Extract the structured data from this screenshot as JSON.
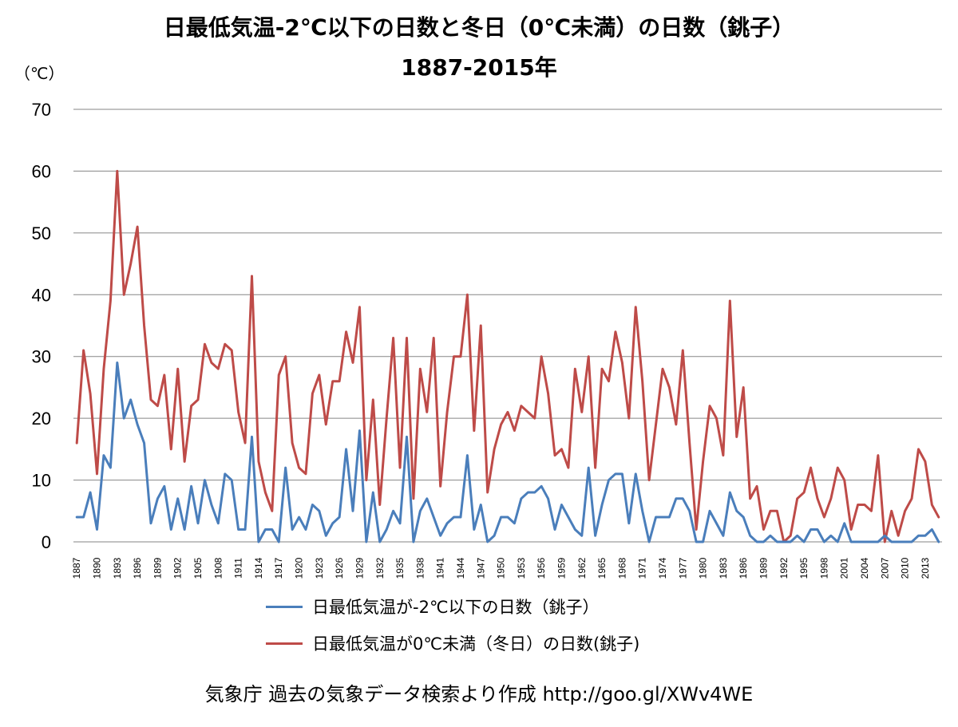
{
  "chart": {
    "title_line1": "日最低気温-2℃以下の日数と冬日（0℃未満）の日数（銚子）",
    "title_line2": "1887-2015年",
    "unit_label": "（℃）",
    "source": "気象庁 過去の気象データ検索より作成 http://goo.gl/XWv4WE"
  },
  "legend": [
    {
      "label": "日最低気温が-2℃以下の日数（銚子）",
      "color": "#4a7ebb"
    },
    {
      "label": "日最低気温が0℃未満（冬日）の日数(銚子)",
      "color": "#be4b48"
    }
  ],
  "chart_data": {
    "type": "line",
    "ylim": [
      0,
      70
    ],
    "yticks": [
      0,
      10,
      20,
      30,
      40,
      50,
      60,
      70
    ],
    "grid": true,
    "legend_position": "bottom",
    "x": [
      1887,
      1888,
      1889,
      1890,
      1891,
      1892,
      1893,
      1894,
      1895,
      1896,
      1897,
      1898,
      1899,
      1900,
      1901,
      1902,
      1903,
      1904,
      1905,
      1906,
      1907,
      1908,
      1909,
      1910,
      1911,
      1912,
      1913,
      1914,
      1915,
      1916,
      1917,
      1918,
      1919,
      1920,
      1921,
      1922,
      1923,
      1924,
      1925,
      1926,
      1927,
      1928,
      1929,
      1930,
      1931,
      1932,
      1933,
      1934,
      1935,
      1936,
      1937,
      1938,
      1939,
      1940,
      1941,
      1942,
      1943,
      1944,
      1945,
      1946,
      1947,
      1948,
      1949,
      1950,
      1951,
      1952,
      1953,
      1954,
      1955,
      1956,
      1957,
      1958,
      1959,
      1960,
      1961,
      1962,
      1963,
      1964,
      1965,
      1966,
      1967,
      1968,
      1969,
      1970,
      1971,
      1972,
      1973,
      1974,
      1975,
      1976,
      1977,
      1978,
      1979,
      1980,
      1981,
      1982,
      1983,
      1984,
      1985,
      1986,
      1987,
      1988,
      1989,
      1990,
      1991,
      1992,
      1993,
      1994,
      1995,
      1996,
      1997,
      1998,
      1999,
      2000,
      2001,
      2002,
      2003,
      2004,
      2005,
      2006,
      2007,
      2008,
      2009,
      2010,
      2011,
      2012,
      2013,
      2014,
      2015
    ],
    "xtick_labels": [
      1887,
      1890,
      1893,
      1896,
      1899,
      1902,
      1905,
      1908,
      1911,
      1914,
      1917,
      1920,
      1923,
      1926,
      1929,
      1932,
      1935,
      1938,
      1941,
      1944,
      1947,
      1950,
      1953,
      1956,
      1959,
      1962,
      1965,
      1968,
      1971,
      1974,
      1977,
      1980,
      1983,
      1986,
      1989,
      1992,
      1995,
      1998,
      2001,
      2004,
      2007,
      2010,
      2013
    ],
    "series": [
      {
        "name": "日最低気温が-2℃以下の日数（銚子）",
        "color": "#4a7ebb",
        "values": [
          4,
          4,
          8,
          2,
          14,
          12,
          29,
          20,
          23,
          19,
          16,
          3,
          7,
          9,
          2,
          7,
          2,
          9,
          3,
          10,
          6,
          3,
          11,
          10,
          2,
          2,
          17,
          0,
          2,
          2,
          0,
          12,
          2,
          4,
          2,
          6,
          5,
          1,
          3,
          4,
          15,
          5,
          18,
          0,
          8,
          0,
          2,
          5,
          3,
          17,
          0,
          5,
          7,
          4,
          1,
          3,
          4,
          4,
          14,
          2,
          6,
          0,
          1,
          4,
          4,
          3,
          7,
          8,
          8,
          9,
          7,
          2,
          6,
          4,
          2,
          1,
          12,
          1,
          6,
          10,
          11,
          11,
          3,
          11,
          5,
          0,
          4,
          4,
          4,
          7,
          7,
          5,
          0,
          0,
          5,
          3,
          1,
          8,
          5,
          4,
          1,
          0,
          0,
          1,
          0,
          0,
          0,
          1,
          0,
          2,
          2,
          0,
          1,
          0,
          3,
          0,
          0,
          0,
          0,
          0,
          1,
          0,
          0,
          0,
          0,
          1,
          1,
          2,
          0
        ]
      },
      {
        "name": "日最低気温が0℃未満（冬日）の日数(銚子)",
        "color": "#be4b48",
        "values": [
          16,
          31,
          24,
          11,
          28,
          39,
          60,
          40,
          45,
          51,
          35,
          23,
          22,
          27,
          15,
          28,
          13,
          22,
          23,
          32,
          29,
          28,
          32,
          31,
          21,
          16,
          43,
          13,
          8,
          5,
          27,
          30,
          16,
          12,
          11,
          24,
          27,
          19,
          26,
          26,
          34,
          29,
          38,
          10,
          23,
          6,
          20,
          33,
          12,
          33,
          7,
          28,
          21,
          33,
          9,
          21,
          30,
          30,
          40,
          18,
          35,
          8,
          15,
          19,
          21,
          18,
          22,
          21,
          20,
          30,
          24,
          14,
          15,
          12,
          28,
          21,
          30,
          12,
          28,
          26,
          34,
          29,
          20,
          38,
          26,
          10,
          19,
          28,
          25,
          19,
          31,
          16,
          2,
          13,
          22,
          20,
          14,
          39,
          17,
          25,
          7,
          9,
          2,
          5,
          5,
          0,
          1,
          7,
          8,
          12,
          7,
          4,
          7,
          12,
          10,
          2,
          6,
          6,
          5,
          14,
          0,
          5,
          1,
          5,
          7,
          15,
          13,
          6,
          4
        ]
      }
    ]
  }
}
